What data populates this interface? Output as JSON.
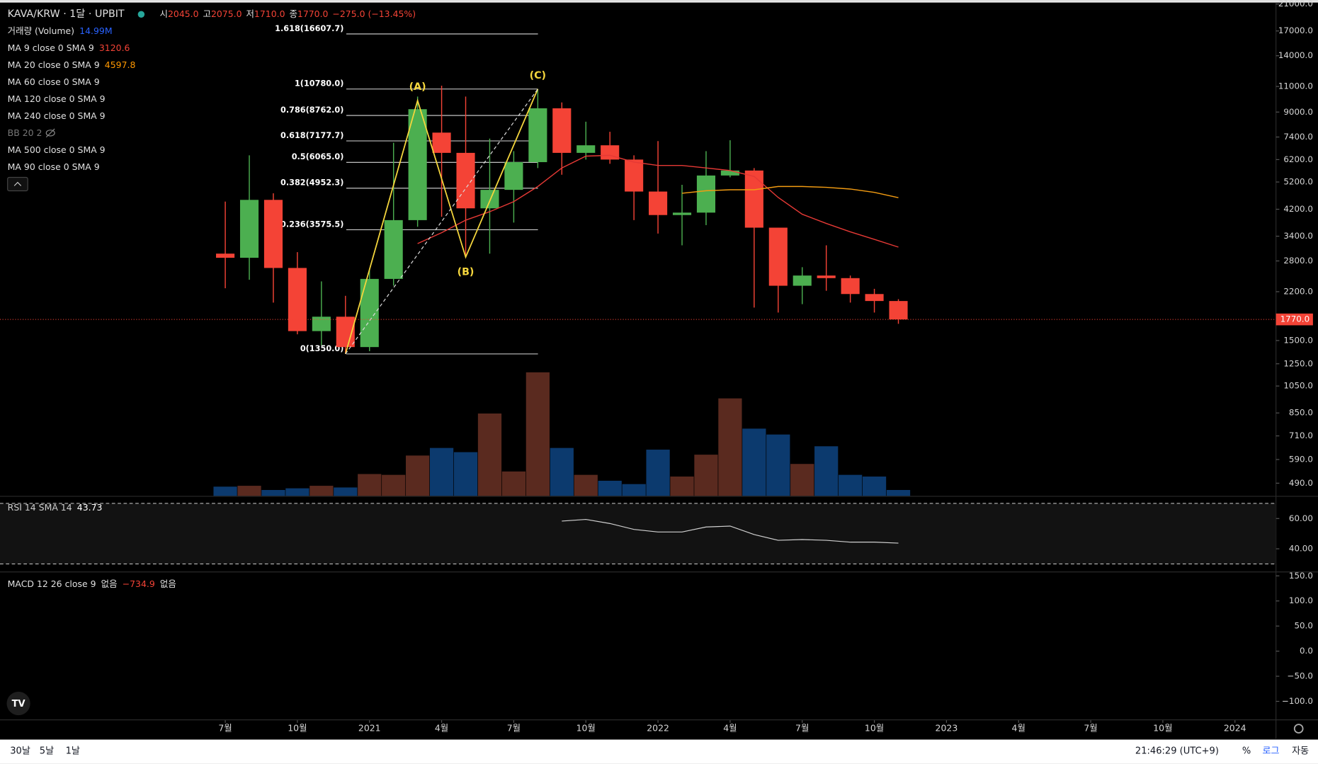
{
  "header": {
    "symbol": "KAVA/KRW · 1달 · UPBIT",
    "ohlc": [
      {
        "label": "시",
        "value": "2045.0"
      },
      {
        "label": "고",
        "value": "2075.0"
      },
      {
        "label": "저",
        "value": "1710.0"
      },
      {
        "label": "종",
        "value": "1770.0"
      }
    ],
    "change": "−275.0 (−13.45%)"
  },
  "indicators": [
    {
      "name": "거래량 (Volume)",
      "value": "14.99M",
      "color": "#2962ff"
    },
    {
      "name": "MA 9 close 0 SMA 9",
      "value": "3120.6",
      "color": "#f44336"
    },
    {
      "name": "MA 20 close 0 SMA 9",
      "value": "4597.8",
      "color": "#ff9800"
    },
    {
      "name": "MA 60 close 0 SMA 9"
    },
    {
      "name": "MA 120 close 0 SMA 9"
    },
    {
      "name": "MA 240 close 0 SMA 9"
    },
    {
      "name": "BB 20 2",
      "hidden": true
    },
    {
      "name": "MA 500 close 0 SMA 9"
    },
    {
      "name": "MA 90 close 0 SMA 9"
    }
  ],
  "chart_data": {
    "type": "candlestick",
    "log_scale": true,
    "categories": [
      "7월",
      null,
      null,
      "10월",
      null,
      null,
      "2021",
      null,
      null,
      "4월",
      null,
      null,
      "7월",
      null,
      null,
      "10월",
      null,
      null,
      "2022",
      null,
      null,
      "4월",
      null,
      null,
      "7월",
      null,
      null,
      "10월",
      null,
      null,
      "2023",
      null,
      null,
      "4월",
      null,
      null,
      "7월",
      null,
      null,
      "10월",
      null,
      null,
      "2024"
    ],
    "open": [
      2965,
      2870,
      4520,
      2650,
      1615,
      1808,
      1425,
      2432,
      3856,
      7660,
      6535,
      4230,
      4890,
      6077,
      9270,
      6535,
      6935,
      6200,
      4825,
      4013,
      4090,
      5472,
      5690,
      3635,
      2305,
      2497,
      2447,
      2160,
      2045,
      null,
      null,
      null,
      null,
      null,
      null,
      null,
      null,
      null,
      null,
      null,
      null,
      null,
      null
    ],
    "high": [
      4460,
      6410,
      4760,
      3000,
      2385,
      2130,
      2600,
      7075,
      10160,
      11070,
      10160,
      7310,
      6624,
      10780,
      9706,
      8345,
      7710,
      6410,
      7170,
      5087,
      6624,
      7215,
      5800,
      3635,
      2666,
      3165,
      2497,
      2250,
      2075,
      null,
      null,
      null,
      null,
      null,
      null,
      null,
      null,
      null,
      null,
      null,
      null,
      null,
      null
    ],
    "low": [
      2260,
      2415,
      2020,
      1575,
      1445,
      1350,
      1380,
      2305,
      3660,
      3960,
      2886,
      2965,
      3783,
      5800,
      5505,
      6200,
      5998,
      3856,
      3470,
      3165,
      3708,
      5396,
      1943,
      1868,
      1995,
      2216,
      2020,
      1868,
      1710,
      null,
      null,
      null,
      null,
      null,
      null,
      null,
      null,
      null,
      null,
      null,
      null,
      null,
      null
    ],
    "close": [
      2870,
      4520,
      2650,
      1615,
      1808,
      1425,
      2432,
      3856,
      9205,
      6535,
      4230,
      4890,
      6077,
      9270,
      6535,
      6935,
      6200,
      4825,
      4013,
      4090,
      5472,
      5690,
      3635,
      2305,
      2497,
      2447,
      2160,
      2045,
      1770,
      null,
      null,
      null,
      null,
      null,
      null,
      null,
      null,
      null,
      null,
      null,
      null,
      null,
      null
    ],
    "volume": [
      23.5,
      25.7,
      15.0,
      19.3,
      25.7,
      21.4,
      55.6,
      53.5,
      102.7,
      122.0,
      111.3,
      209.7,
      62.1,
      314.6,
      122.0,
      53.5,
      38.5,
      30.0,
      117.7,
      49.2,
      104.9,
      248.2,
      171.2,
      156.2,
      81.3,
      126.3,
      53.5,
      49.2,
      14.99,
      null,
      null,
      null,
      null,
      null,
      null,
      null,
      null,
      null,
      null,
      null,
      null,
      null,
      null
    ],
    "volume_colors": [
      "#0c3a6e",
      "#5a2a1f",
      "#0c3a6e",
      "#0c3a6e",
      "#5a2a1f",
      "#0c3a6e",
      "#5a2a1f",
      "#5a2a1f",
      "#5a2a1f",
      "#0c3a6e",
      "#0c3a6e",
      "#5a2a1f",
      "#5a2a1f",
      "#5a2a1f",
      "#0c3a6e",
      "#5a2a1f",
      "#0c3a6e",
      "#0c3a6e",
      "#0c3a6e",
      "#5a2a1f",
      "#5a2a1f",
      "#5a2a1f",
      "#0c3a6e",
      "#0c3a6e",
      "#5a2a1f",
      "#0c3a6e",
      "#0c3a6e",
      "#0c3a6e",
      "#0c3a6e",
      null,
      null,
      null,
      null,
      null,
      null,
      null,
      null,
      null,
      null,
      null,
      null,
      null,
      null
    ],
    "volume_ylim": [
      0,
      1256
    ],
    "up_color": "#4caf50",
    "down_color": "#f44336",
    "ylim": [
      443.6,
      21240
    ],
    "yticks": [
      {
        "value": 21000,
        "label": "21000.0"
      },
      {
        "value": 17000,
        "label": "17000.0"
      },
      {
        "value": 14000,
        "label": "14000.0"
      },
      {
        "value": 11000,
        "label": "11000.0"
      },
      {
        "value": 9000,
        "label": "9000.0"
      },
      {
        "value": 7400,
        "label": "7400.0"
      },
      {
        "value": 6200,
        "label": "6200.0"
      },
      {
        "value": 5200,
        "label": "5200.0"
      },
      {
        "value": 4200,
        "label": "4200.0"
      },
      {
        "value": 3400,
        "label": "3400.0"
      },
      {
        "value": 2800,
        "label": "2800.0"
      },
      {
        "value": 2200,
        "label": "2200.0"
      },
      {
        "value": 1500,
        "label": "1500.0"
      },
      {
        "value": 1250,
        "label": "1250.0"
      },
      {
        "value": 1050,
        "label": "1050.0"
      },
      {
        "value": 850,
        "label": "850.0"
      },
      {
        "value": 710,
        "label": "710.0"
      },
      {
        "value": 590,
        "label": "590.0"
      },
      {
        "value": 490,
        "label": "490.0"
      }
    ],
    "last_label": "1770.0",
    "series": [
      {
        "color": "#e53935",
        "values": [
          null,
          null,
          null,
          null,
          null,
          null,
          null,
          null,
          3208,
          3494,
          3856,
          4120,
          4458,
          5020,
          5805,
          6370,
          6410,
          6077,
          5920,
          5920,
          5805,
          5690,
          5434,
          4607,
          4038,
          3757,
          3518,
          3316,
          3120.6,
          null,
          null,
          null,
          null,
          null,
          null,
          null,
          null,
          null,
          null,
          null,
          null,
          null,
          null
        ]
      },
      {
        "color": "#f39c12",
        "values": [
          null,
          null,
          null,
          null,
          null,
          null,
          null,
          null,
          null,
          null,
          null,
          null,
          null,
          null,
          null,
          null,
          null,
          null,
          null,
          4760,
          4856,
          4893,
          4893,
          5020,
          5020,
          4987,
          4921,
          4795,
          4597.8,
          null,
          null,
          null,
          null,
          null,
          null,
          null,
          null,
          null,
          null,
          null,
          null,
          null,
          null
        ]
      }
    ],
    "fib": [
      {
        "label": "1.618(16607.7)",
        "value": 16607.7
      },
      {
        "label": "1(10780.0)",
        "value": 10780
      },
      {
        "label": "0.786(8762.0)",
        "value": 8762
      },
      {
        "label": "0.618(7177.7)",
        "value": 7177.7
      },
      {
        "label": "0.5(6065.0)",
        "value": 6065
      },
      {
        "label": "0.382(4952.3)",
        "value": 4952.3
      },
      {
        "label": "0.236(3575.5)",
        "value": 3575.5
      },
      {
        "label": "0(1350.0)",
        "value": 1350
      }
    ],
    "abc": {
      "color": "#f5d63d",
      "labels": [
        null,
        null,
        null,
        null,
        null,
        null,
        null,
        null,
        "(A)",
        null,
        "(B)",
        null,
        null,
        "(C)",
        null,
        null,
        null,
        null,
        null,
        null,
        null,
        null,
        null,
        null,
        null,
        null,
        null,
        null,
        null,
        null,
        null,
        null,
        null,
        null,
        null,
        null,
        null,
        null,
        null,
        null,
        null,
        null,
        null
      ],
      "values": [
        null,
        null,
        null,
        null,
        null,
        1350,
        null,
        null,
        9850,
        null,
        2886,
        null,
        null,
        10780,
        null,
        null,
        null,
        null,
        null,
        null,
        null,
        null,
        null,
        null,
        null,
        null,
        null,
        null,
        null,
        null,
        null,
        null,
        null,
        null,
        null,
        null,
        null,
        null,
        null,
        null,
        null,
        null,
        null
      ]
    },
    "rsi": {
      "name": "RSI 14 SMA 14",
      "value_label": "43.73",
      "color": "#d0d0d0",
      "ylim": [
        25,
        74.4
      ],
      "bands": [
        30,
        70
      ],
      "yticks": [
        {
          "value": 60,
          "label": "60.00"
        },
        {
          "value": 40,
          "label": "40.00"
        }
      ],
      "values": [
        null,
        null,
        null,
        null,
        null,
        null,
        null,
        null,
        null,
        null,
        null,
        null,
        null,
        null,
        58.3,
        59.4,
        56.7,
        52.8,
        51.1,
        51.1,
        54.4,
        55.0,
        49.4,
        45.6,
        46.1,
        45.6,
        44.4,
        44.4,
        43.73,
        null,
        null,
        null,
        null,
        null,
        null,
        null,
        null,
        null,
        null,
        null,
        null,
        null,
        null
      ]
    },
    "macd": {
      "name": "MACD 12 26 close 9",
      "legend": [
        "없음",
        "−734.9",
        "없음"
      ],
      "ylim": [
        -136,
        157
      ],
      "yticks": [
        {
          "value": 150,
          "label": "150.0"
        },
        {
          "value": 100,
          "label": "100.0"
        },
        {
          "value": 50,
          "label": "50.0"
        },
        {
          "value": 0,
          "label": "0.0"
        },
        {
          "value": -50,
          "label": "−50.0"
        },
        {
          "value": -100,
          "label": "−100.0"
        }
      ]
    }
  },
  "footer": {
    "ranges": [
      "30날",
      "5날",
      "1날"
    ],
    "clock": "21:46:29 (UTC+9)",
    "options": [
      "%",
      "로그",
      "자동"
    ]
  }
}
